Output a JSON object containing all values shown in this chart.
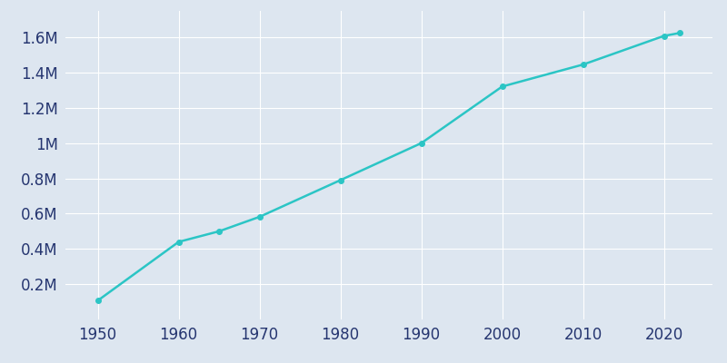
{
  "years": [
    1950,
    1960,
    1965,
    1970,
    1980,
    1990,
    2000,
    2010,
    2020,
    2022
  ],
  "population": [
    107000,
    440000,
    500000,
    582000,
    790000,
    1000000,
    1321000,
    1445632,
    1608139,
    1625000
  ],
  "line_color": "#2bc5c5",
  "marker_color": "#2bc5c5",
  "background_color": "#dde6f0",
  "axes_bg_color": "#dde6f0",
  "grid_color": "#ffffff",
  "tick_label_color": "#253570",
  "xlim": [
    1946,
    2026
  ],
  "ylim": [
    0,
    1750000
  ],
  "xticks": [
    1950,
    1960,
    1970,
    1980,
    1990,
    2000,
    2010,
    2020
  ],
  "yticks": [
    200000,
    400000,
    600000,
    800000,
    1000000,
    1200000,
    1400000,
    1600000
  ],
  "ytick_labels": [
    "0.2M",
    "0.4M",
    "0.6M",
    "0.8M",
    "1M",
    "1.2M",
    "1.4M",
    "1.6M"
  ],
  "line_width": 1.8,
  "marker_size": 4,
  "tick_fontsize": 12
}
